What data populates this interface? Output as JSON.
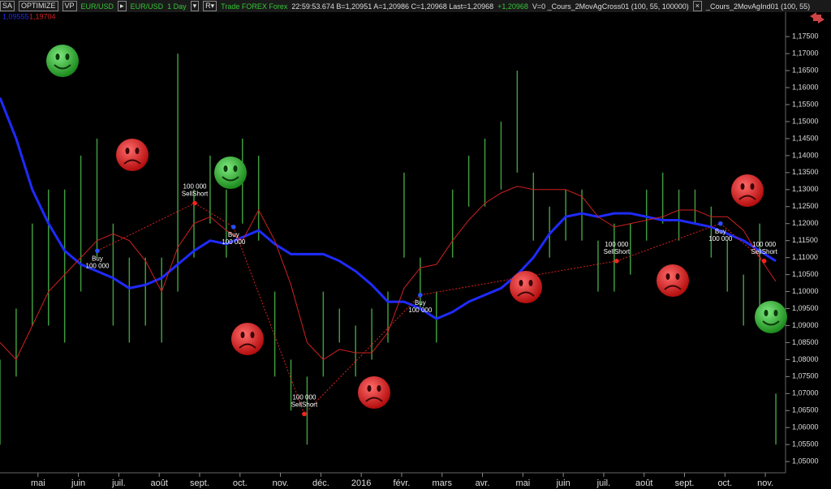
{
  "toolbar": {
    "buttons": [
      "SA",
      "OPTIMIZE",
      "VP"
    ],
    "symbol": "EUR/USD",
    "chart_symbol": "EUR/USD",
    "period": "1 Day",
    "info_green": "Trade FOREX Forex",
    "info": "22:59:53.674  B=1,20951  A=1,20986  C=1,20968  Last=1,20968",
    "change": "+1,20968",
    "info2": "V=0  _Cours_2MovAgCross01 (100, 55, 100000)",
    "indicator": "_Cours_2MovAgInd01   (100, 55)"
  },
  "chart_data": {
    "type": "hilo",
    "xlim": [
      -0.94,
      18.5
    ],
    "ylim": [
      1.0467,
      1.181
    ],
    "xticks": [
      {
        "value": 0,
        "label": "mai"
      },
      {
        "value": 1,
        "label": "juin"
      },
      {
        "value": 2,
        "label": "juil."
      },
      {
        "value": 3,
        "label": "août"
      },
      {
        "value": 4,
        "label": "sept."
      },
      {
        "value": 5,
        "label": "oct."
      },
      {
        "value": 6,
        "label": "nov."
      },
      {
        "value": 7,
        "label": "déc."
      },
      {
        "value": 8,
        "label": "2016"
      },
      {
        "value": 9,
        "label": "févr."
      },
      {
        "value": 10,
        "label": "mars"
      },
      {
        "value": 11,
        "label": "avr."
      },
      {
        "value": 12,
        "label": "mai"
      },
      {
        "value": 13,
        "label": "juin"
      },
      {
        "value": 14,
        "label": "juil."
      },
      {
        "value": 15,
        "label": "août"
      },
      {
        "value": 16,
        "label": "sept."
      },
      {
        "value": 17,
        "label": "oct."
      },
      {
        "value": 18,
        "label": "nov."
      }
    ],
    "yticks": [
      {
        "value": 1.05,
        "label": "1,05000"
      },
      {
        "value": 1.055,
        "label": "1,05500"
      },
      {
        "value": 1.06,
        "label": "1,06000"
      },
      {
        "value": 1.065,
        "label": "1,06500"
      },
      {
        "value": 1.07,
        "label": "1,07000"
      },
      {
        "value": 1.075,
        "label": "1,07500"
      },
      {
        "value": 1.08,
        "label": "1,08000"
      },
      {
        "value": 1.085,
        "label": "1,08500"
      },
      {
        "value": 1.09,
        "label": "1,09000"
      },
      {
        "value": 1.095,
        "label": "1,09500"
      },
      {
        "value": 1.1,
        "label": "1,10000"
      },
      {
        "value": 1.105,
        "label": "1,10500"
      },
      {
        "value": 1.11,
        "label": "1,11000"
      },
      {
        "value": 1.115,
        "label": "1,11500"
      },
      {
        "value": 1.12,
        "label": "1,12000"
      },
      {
        "value": 1.125,
        "label": "1,12500"
      },
      {
        "value": 1.13,
        "label": "1,13000"
      },
      {
        "value": 1.135,
        "label": "1,13500"
      },
      {
        "value": 1.14,
        "label": "1,14000"
      },
      {
        "value": 1.145,
        "label": "1,14500"
      },
      {
        "value": 1.15,
        "label": "1,15000"
      },
      {
        "value": 1.155,
        "label": "1,15500"
      },
      {
        "value": 1.16,
        "label": "1,16000"
      },
      {
        "value": 1.165,
        "label": "1,16500"
      },
      {
        "value": 1.17,
        "label": "1,17000"
      },
      {
        "value": 1.175,
        "label": "1,17500"
      }
    ],
    "x": [
      -0.94,
      -0.54,
      -0.14,
      0.26,
      0.66,
      1.06,
      1.46,
      1.86,
      2.26,
      2.66,
      3.06,
      3.46,
      3.86,
      4.26,
      4.66,
      5.06,
      5.46,
      5.86,
      6.26,
      6.66,
      7.06,
      7.46,
      7.86,
      8.26,
      8.66,
      9.06,
      9.46,
      9.86,
      10.26,
      10.66,
      11.06,
      11.46,
      11.86,
      12.26,
      12.66,
      13.06,
      13.46,
      13.86,
      14.26,
      14.66,
      15.06,
      15.46,
      15.86,
      16.26,
      16.66,
      17.06,
      17.46,
      17.86,
      18.26
    ],
    "bar_color": "#3f9a3f",
    "low": [
      1.055,
      1.075,
      1.09,
      1.09,
      1.085,
      1.1,
      1.11,
      1.09,
      1.085,
      1.09,
      1.085,
      1.1,
      1.11,
      1.12,
      1.11,
      1.12,
      1.115,
      1.075,
      1.065,
      1.055,
      1.075,
      1.085,
      1.075,
      1.08,
      1.085,
      1.11,
      1.095,
      1.085,
      1.11,
      1.125,
      1.125,
      1.13,
      1.135,
      1.115,
      1.11,
      1.115,
      1.115,
      1.1,
      1.1,
      1.105,
      1.115,
      1.12,
      1.115,
      1.12,
      1.11,
      1.1,
      1.09,
      1.095,
      1.055
    ],
    "high": [
      1.08,
      1.095,
      1.12,
      1.13,
      1.13,
      1.14,
      1.145,
      1.12,
      1.11,
      1.11,
      1.11,
      1.17,
      1.13,
      1.14,
      1.13,
      1.145,
      1.14,
      1.1,
      1.08,
      1.075,
      1.1,
      1.095,
      1.09,
      1.095,
      1.1,
      1.135,
      1.11,
      1.1,
      1.13,
      1.14,
      1.145,
      1.15,
      1.165,
      1.135,
      1.125,
      1.13,
      1.13,
      1.115,
      1.12,
      1.12,
      1.13,
      1.135,
      1.13,
      1.13,
      1.125,
      1.115,
      1.105,
      1.12,
      1.07
    ],
    "series": [
      {
        "label": "1,09555",
        "color": "#1f2bff",
        "width": 3,
        "values": [
          1.157,
          1.145,
          1.13,
          1.12,
          1.112,
          1.108,
          1.106,
          1.104,
          1.101,
          1.102,
          1.104,
          1.108,
          1.112,
          1.115,
          1.114,
          1.116,
          1.118,
          1.114,
          1.111,
          1.111,
          1.111,
          1.109,
          1.106,
          1.102,
          1.097,
          1.097,
          1.095,
          1.092,
          1.094,
          1.097,
          1.099,
          1.101,
          1.105,
          1.11,
          1.117,
          1.122,
          1.123,
          1.122,
          1.123,
          1.123,
          1.122,
          1.121,
          1.121,
          1.12,
          1.119,
          1.117,
          1.115,
          1.112,
          1.109
        ]
      },
      {
        "label": "1,19704",
        "color": "#d02020",
        "width": 1,
        "values": [
          1.085,
          1.08,
          1.09,
          1.1,
          1.105,
          1.11,
          1.115,
          1.117,
          1.115,
          1.109,
          1.1,
          1.113,
          1.12,
          1.122,
          1.118,
          1.115,
          1.124,
          1.115,
          1.102,
          1.085,
          1.08,
          1.083,
          1.082,
          1.082,
          1.088,
          1.101,
          1.107,
          1.108,
          1.115,
          1.121,
          1.126,
          1.129,
          1.131,
          1.13,
          1.13,
          1.13,
          1.128,
          1.122,
          1.119,
          1.12,
          1.121,
          1.122,
          1.124,
          1.124,
          1.122,
          1.122,
          1.118,
          1.11,
          1.103
        ]
      }
    ],
    "trades": [
      {
        "lines": [
          "Buy",
          "100 000"
        ],
        "position": "below",
        "color": "#2a4dff",
        "x": 1.47,
        "y": 1.112
      },
      {
        "lines": [
          "100 000",
          "SellShort"
        ],
        "position": "above",
        "color": "#ff2020",
        "x": 3.88,
        "y": 1.126
      },
      {
        "lines": [
          "Buy",
          "100 000"
        ],
        "position": "below",
        "color": "#2a4dff",
        "x": 4.84,
        "y": 1.119
      },
      {
        "lines": [
          "100 000",
          "SellShort"
        ],
        "position": "above",
        "color": "#ff2020",
        "x": 6.59,
        "y": 1.064
      },
      {
        "lines": [
          "Buy",
          "100 000"
        ],
        "position": "below",
        "color": "#2a4dff",
        "x": 9.46,
        "y": 1.099
      },
      {
        "lines": [
          "100 000",
          "SellShort"
        ],
        "position": "above",
        "color": "#ff2020",
        "x": 14.32,
        "y": 1.109
      },
      {
        "lines": [
          "Buy",
          "100 000"
        ],
        "position": "below",
        "color": "#2a4dff",
        "x": 16.89,
        "y": 1.12
      },
      {
        "lines": [
          "100 000",
          "SellShort"
        ],
        "position": "above",
        "color": "#ff2020",
        "x": 17.97,
        "y": 1.109
      }
    ]
  }
}
